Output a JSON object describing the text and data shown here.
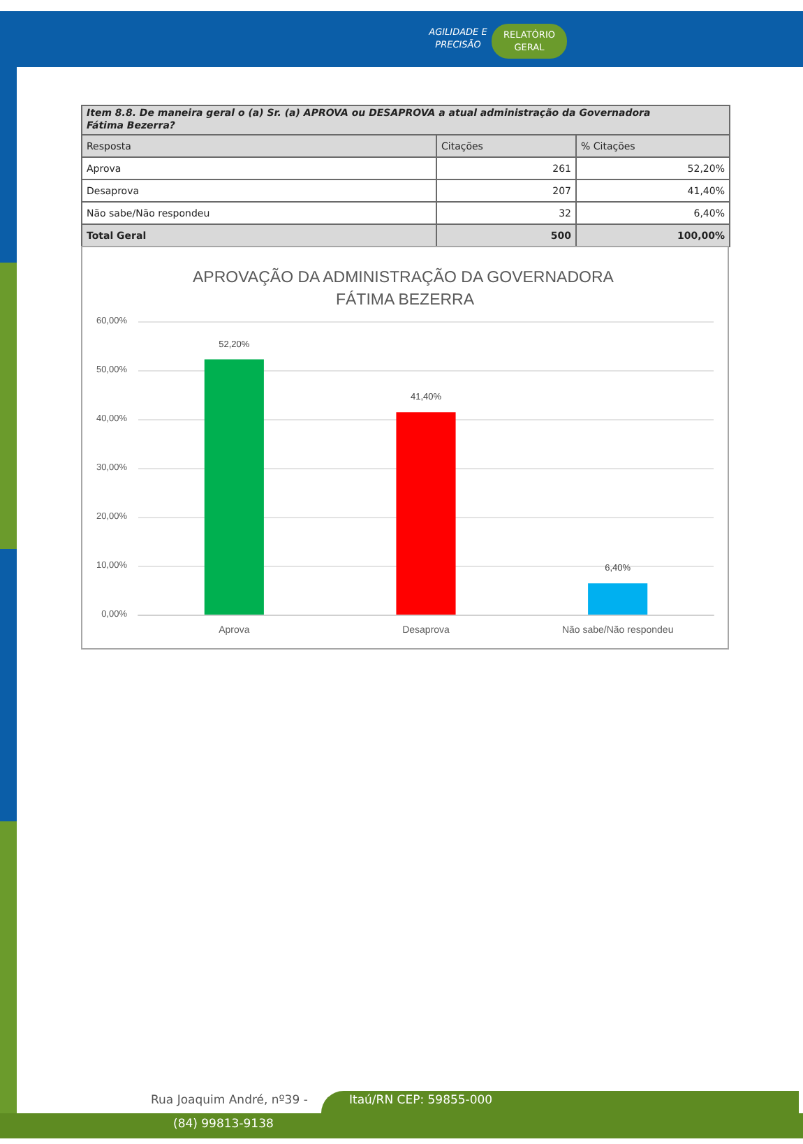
{
  "chart_data": [
    {
      "type": "other",
      "title": "Item 8.8. De maneira geral o (a) Sr. (a) APROVA ou DESAPROVA a atual administração da Governadora Fátima Bezerra?",
      "xlabel": "Resposta",
      "categories": [
        "Aprova",
        "Desaprova",
        "Não sabe/Não respondeu",
        "Total Geral"
      ],
      "series": [
        {
          "name": "Citações",
          "values": [
            261,
            207,
            32,
            500
          ],
          "value_labels": [
            "261",
            "207",
            "32",
            "500"
          ]
        },
        {
          "name": "% Citações",
          "values": [
            52.2,
            41.4,
            6.4,
            100
          ],
          "value_labels": [
            "52,20%",
            "41,40%",
            "6,40%",
            "100,00%"
          ]
        }
      ],
      "annotations": [
        "AGILIDADE E PRECISÃO",
        "RELATÓRIO GERAL"
      ]
    },
    {
      "type": "bar",
      "title": "APROVAÇÃO DA ADMINISTRAÇÃO DA GOVERNADORA FÁTIMA BEZERRA",
      "categories": [
        "Aprova",
        "Desaprova",
        "Não sabe/Não respondeu"
      ],
      "values": [
        52.2,
        41.4,
        6.4
      ],
      "colors": [
        "#00b050",
        "#ff0000",
        "#00b0f0"
      ],
      "value_labels": [
        "52,20%",
        "41,40%",
        "6,40%"
      ],
      "ylim": [
        0,
        60
      ],
      "yticks": [
        {
          "value": 0,
          "label": "0,00%"
        },
        {
          "value": 10,
          "label": "10,00%"
        },
        {
          "value": 20,
          "label": "20,00%"
        },
        {
          "value": 30,
          "label": "30,00%"
        },
        {
          "value": 40,
          "label": "40,00%"
        },
        {
          "value": 50,
          "label": "50,00%"
        },
        {
          "value": 60,
          "label": "60,00%"
        }
      ],
      "grid": "y",
      "annotations": [
        "Rua Joaquim André, nº39 -",
        "Itaú/RN CEP: 59855-000",
        "(84) 99813-9138"
      ]
    }
  ]
}
